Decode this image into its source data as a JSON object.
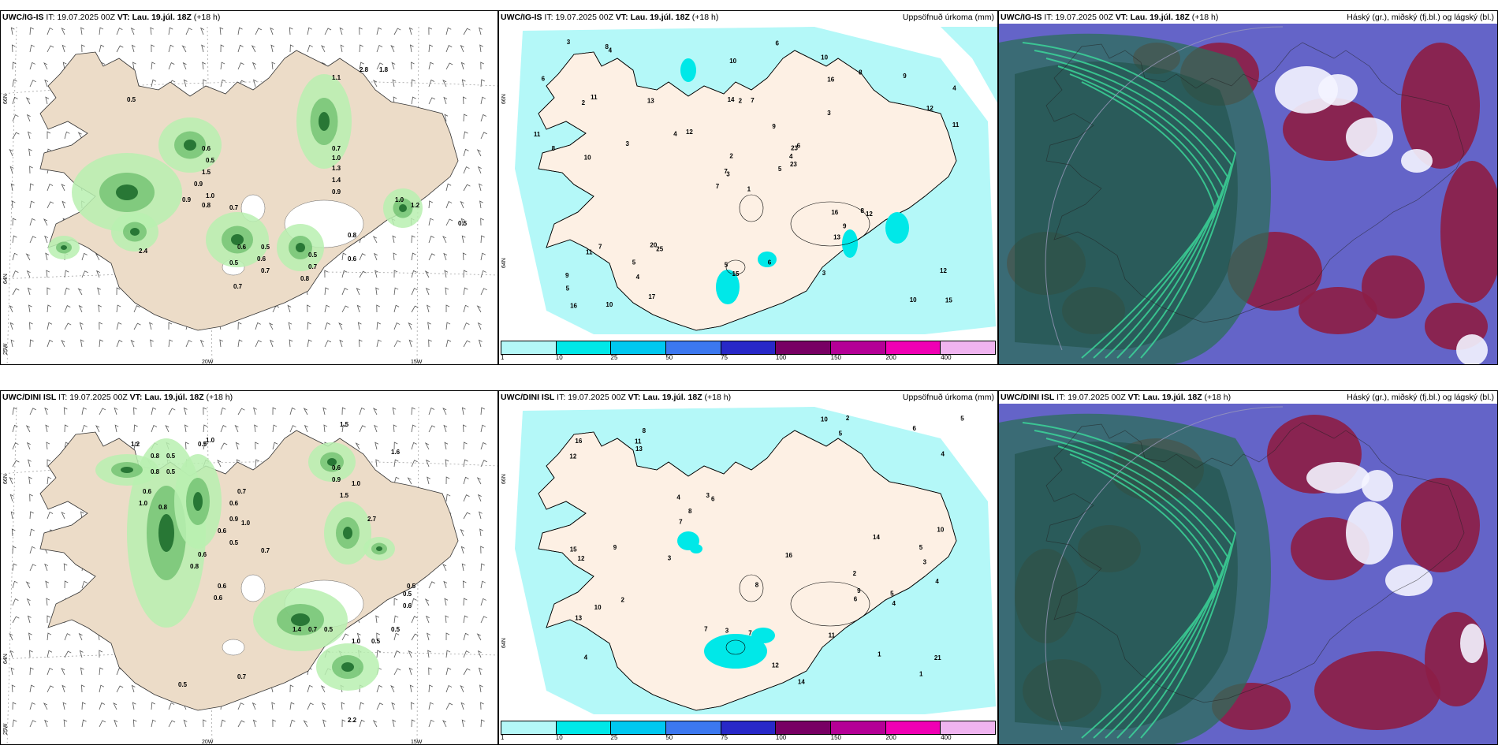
{
  "panels": [
    {
      "model": "UWC/IG-IS",
      "it_label": "IT:",
      "it": "19.07.2025 00Z",
      "vt_label": "VT:",
      "vt": "Lau. 19.júl. 18Z",
      "lead": "(+18 h)",
      "right": ""
    },
    {
      "model": "UWC/IG-IS",
      "it_label": "IT:",
      "it": "19.07.2025 00Z",
      "vt_label": "VT:",
      "vt": "Lau. 19.júl. 18Z",
      "lead": "(+18 h)",
      "right": "Uppsöfnuð úrkoma (mm)"
    },
    {
      "model": "UWC/IG-IS",
      "it_label": "IT:",
      "it": "19.07.2025 00Z",
      "vt_label": "VT:",
      "vt": "Lau. 19.júl. 18Z",
      "lead": "(+18 h)",
      "right": "Háský (gr.), miðský (fj.bl.) og lágský (bl.)"
    },
    {
      "model": "UWC/DINI ISL",
      "it_label": "IT:",
      "it": "19.07.2025 00Z",
      "vt_label": "VT:",
      "vt": "Lau. 19.júl. 18Z",
      "lead": "(+18 h)",
      "right": ""
    },
    {
      "model": "UWC/DINI ISL",
      "it_label": "IT:",
      "it": "19.07.2025 00Z",
      "vt_label": "VT:",
      "vt": "Lau. 19.júl. 18Z",
      "lead": "(+18 h)",
      "right": "Uppsöfnuð úrkoma (mm)"
    },
    {
      "model": "UWC/DINI ISL",
      "it_label": "IT:",
      "it": "19.07.2025 00Z",
      "vt_label": "VT:",
      "vt": "Lau. 19.júl. 18Z",
      "lead": "(+18 h)",
      "right": "Háský (gr.), miðský (fj.bl.) og lágský (bl.)"
    }
  ],
  "axes": {
    "lat66": "66N",
    "lat64": "64N",
    "lon25": "25W",
    "lon20": "20W",
    "lon15": "15W"
  },
  "precip_legend": {
    "labels": [
      "1",
      "10",
      "25",
      "50",
      "75",
      "100",
      "150",
      "200",
      "400"
    ],
    "colors": [
      "#b4f8f8",
      "#00e8e8",
      "#00c8f0",
      "#3c78f0",
      "#2828c8",
      "#780064",
      "#b40096",
      "#f000b4",
      "#f0b4f0"
    ]
  },
  "wind_values": {
    "top": [
      [
        "0.5",
        ""
      ],
      [
        "0.6",
        ""
      ],
      [
        "0.5",
        ""
      ],
      [
        "1.5",
        ""
      ],
      [
        "0.9",
        ""
      ],
      [
        "1.0",
        ""
      ],
      [
        "0.8",
        ""
      ],
      [
        "0.9",
        ""
      ],
      [
        "0.7",
        ""
      ],
      [
        "0.6",
        ""
      ],
      [
        "0.5",
        ""
      ],
      [
        "0.5",
        ""
      ],
      [
        "0.6",
        ""
      ],
      [
        "0.7",
        ""
      ],
      [
        "0.5",
        ""
      ],
      [
        "0.7",
        ""
      ],
      [
        "0.8",
        ""
      ],
      [
        "0.7",
        ""
      ],
      [
        "1.0",
        ""
      ],
      [
        "1.3",
        ""
      ],
      [
        "1.4",
        ""
      ],
      [
        "0.9",
        ""
      ],
      [
        "0.8",
        ""
      ],
      [
        "0.6",
        ""
      ],
      [
        "1.0",
        ""
      ],
      [
        "1.2",
        ""
      ],
      [
        "0.7",
        ""
      ],
      [
        "2.8",
        ""
      ],
      [
        "1.8",
        ""
      ],
      [
        "1.1",
        ""
      ],
      [
        "0.5",
        ""
      ],
      [
        "2.4",
        ""
      ]
    ],
    "bottom": [
      [
        "1.2",
        ""
      ],
      [
        "0.8",
        ""
      ],
      [
        "0.5",
        ""
      ],
      [
        "0.8",
        ""
      ],
      [
        "0.5",
        ""
      ],
      [
        "0.5",
        ""
      ],
      [
        "1.0",
        ""
      ],
      [
        "0.6",
        ""
      ],
      [
        "1.0",
        ""
      ],
      [
        "0.8",
        ""
      ],
      [
        "0.7",
        ""
      ],
      [
        "0.6",
        ""
      ],
      [
        "0.9",
        ""
      ],
      [
        "0.6",
        ""
      ],
      [
        "0.5",
        ""
      ],
      [
        "0.7",
        ""
      ],
      [
        "1.0",
        ""
      ],
      [
        "0.6",
        ""
      ],
      [
        "0.8",
        ""
      ],
      [
        "0.6",
        ""
      ],
      [
        "0.6",
        ""
      ],
      [
        "1.5",
        ""
      ],
      [
        "0.6",
        ""
      ],
      [
        "0.9",
        ""
      ],
      [
        "1.0",
        ""
      ],
      [
        "1.5",
        ""
      ],
      [
        "2.7",
        ""
      ],
      [
        "1.6",
        ""
      ],
      [
        "0.5",
        ""
      ],
      [
        "0.6",
        ""
      ],
      [
        "0.5",
        ""
      ],
      [
        "1.4",
        ""
      ],
      [
        "0.7",
        ""
      ],
      [
        "0.5",
        ""
      ],
      [
        "0.7",
        ""
      ],
      [
        "1.0",
        ""
      ],
      [
        "0.5",
        ""
      ],
      [
        "0.5",
        ""
      ],
      [
        "2.2",
        ""
      ],
      [
        "0.5",
        ""
      ]
    ]
  },
  "precip_values": {
    "top": [
      "1",
      "2",
      "3",
      "9",
      "23",
      "25",
      "10",
      "7",
      "16",
      "5",
      "4",
      "15",
      "10",
      "4",
      "7",
      "3",
      "10",
      "14",
      "9",
      "7",
      "12",
      "5",
      "4",
      "2",
      "6",
      "12",
      "11",
      "10",
      "8",
      "16",
      "11",
      "7",
      "5",
      "2",
      "13",
      "8",
      "20",
      "10",
      "12",
      "8",
      "6",
      "4",
      "3",
      "13",
      "17",
      "11",
      "4",
      "16",
      "15",
      "23",
      "11",
      "12",
      "6",
      "9",
      "3",
      "5",
      "8",
      "3",
      "6",
      "9"
    ],
    "bottom": [
      "2",
      "3",
      "4",
      "8",
      "6",
      "1",
      "13",
      "5",
      "4",
      "14",
      "12",
      "15",
      "16",
      "21",
      "7",
      "10",
      "8",
      "16",
      "3",
      "2",
      "5",
      "6",
      "7",
      "4",
      "10",
      "11",
      "9",
      "12",
      "13",
      "14",
      "12",
      "11",
      "8",
      "3",
      "5",
      "4",
      "6",
      "9",
      "7",
      "10",
      "4",
      "2",
      "1",
      "3",
      "5"
    ]
  }
}
